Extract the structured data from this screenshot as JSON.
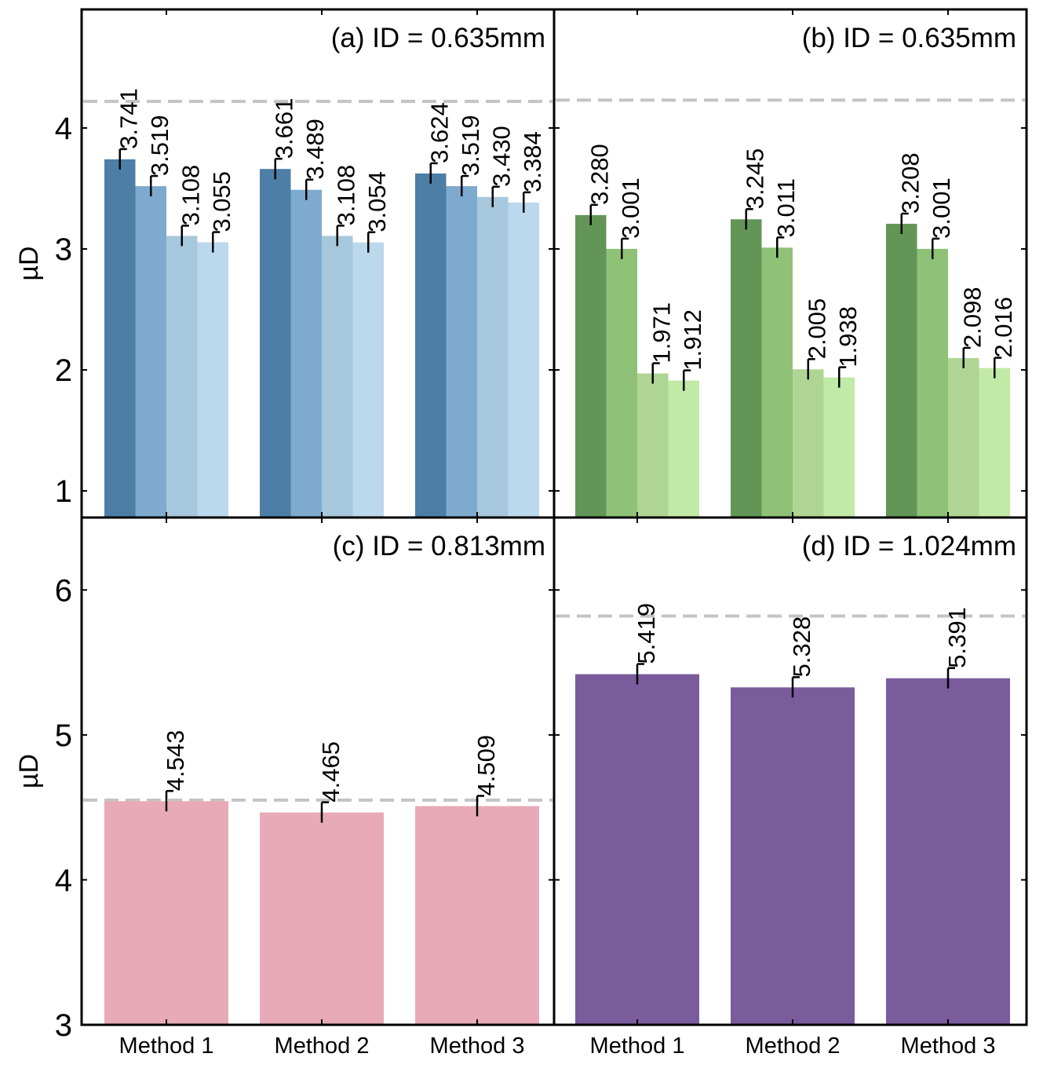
{
  "figure": {
    "shared_categories": [
      "Method 1",
      "Method 2",
      "Method 3"
    ],
    "shared_ylabel": "µD"
  },
  "chart_data": [
    {
      "id": "a",
      "type": "bar",
      "title": "(a) ID = 0.635mm",
      "ylabel": "µD",
      "categories": [
        "Method 1",
        "Method 2",
        "Method 3"
      ],
      "ylim": [
        0.78,
        4.98
      ],
      "yticks": [
        1,
        2,
        3,
        4
      ],
      "reference_line": 4.22,
      "series": [
        {
          "name": "series 1",
          "color": "#4c7ea6",
          "values": [
            3.741,
            3.661,
            3.624
          ],
          "labels": [
            "3.741",
            "3.661",
            "3.624"
          ]
        },
        {
          "name": "series 2",
          "color": "#7daace",
          "values": [
            3.519,
            3.489,
            3.519
          ],
          "labels": [
            "3.519",
            "3.489",
            "3.519"
          ]
        },
        {
          "name": "series 3",
          "color": "#a7c8dc",
          "values": [
            3.108,
            3.108,
            3.43
          ],
          "labels": [
            "3.108",
            "3.108",
            "3.430"
          ]
        },
        {
          "name": "series 4",
          "color": "#bcd8ec",
          "values": [
            3.055,
            3.054,
            3.384
          ],
          "labels": [
            "3.055",
            "3.054",
            "3.384"
          ]
        }
      ]
    },
    {
      "id": "b",
      "type": "bar",
      "title": "(b) ID = 0.635mm",
      "ylabel": "",
      "categories": [
        "Method 1",
        "Method 2",
        "Method 3"
      ],
      "ylim": [
        0.78,
        4.98
      ],
      "yticks": [
        1,
        2,
        3,
        4
      ],
      "reference_line": 4.23,
      "series": [
        {
          "name": "series 1",
          "color": "#629556",
          "values": [
            3.28,
            3.245,
            3.208
          ],
          "labels": [
            "3.280",
            "3.245",
            "3.208"
          ]
        },
        {
          "name": "series 2",
          "color": "#8fc177",
          "values": [
            3.001,
            3.011,
            3.001
          ],
          "labels": [
            "3.001",
            "3.011",
            "3.001"
          ]
        },
        {
          "name": "series 3",
          "color": "#afd594",
          "values": [
            1.971,
            2.005,
            2.098
          ],
          "labels": [
            "1.971",
            "2.005",
            "2.098"
          ]
        },
        {
          "name": "series 4",
          "color": "#c0eaa5",
          "values": [
            1.912,
            1.938,
            2.016
          ],
          "labels": [
            "1.912",
            "1.938",
            "2.016"
          ]
        }
      ]
    },
    {
      "id": "c",
      "type": "bar",
      "title": "(c) ID = 0.813mm",
      "ylabel": "µD",
      "categories": [
        "Method 1",
        "Method 2",
        "Method 3"
      ],
      "ylim": [
        3.0,
        6.5
      ],
      "yticks": [
        3,
        4,
        5,
        6
      ],
      "reference_line": 4.55,
      "series": [
        {
          "name": "series 1",
          "color": "#e8aab7",
          "values": [
            4.543,
            4.465,
            4.509
          ],
          "labels": [
            "4.543",
            "4.465",
            "4.509"
          ]
        }
      ]
    },
    {
      "id": "d",
      "type": "bar",
      "title": "(d) ID = 1.024mm",
      "ylabel": "",
      "categories": [
        "Method 1",
        "Method 2",
        "Method 3"
      ],
      "ylim": [
        3.0,
        6.5
      ],
      "yticks": [
        3,
        4,
        5,
        6
      ],
      "reference_line": 5.82,
      "series": [
        {
          "name": "series 1",
          "color": "#7a5c9d",
          "values": [
            5.419,
            5.328,
            5.391
          ],
          "labels": [
            "5.419",
            "5.328",
            "5.391"
          ]
        }
      ]
    }
  ]
}
